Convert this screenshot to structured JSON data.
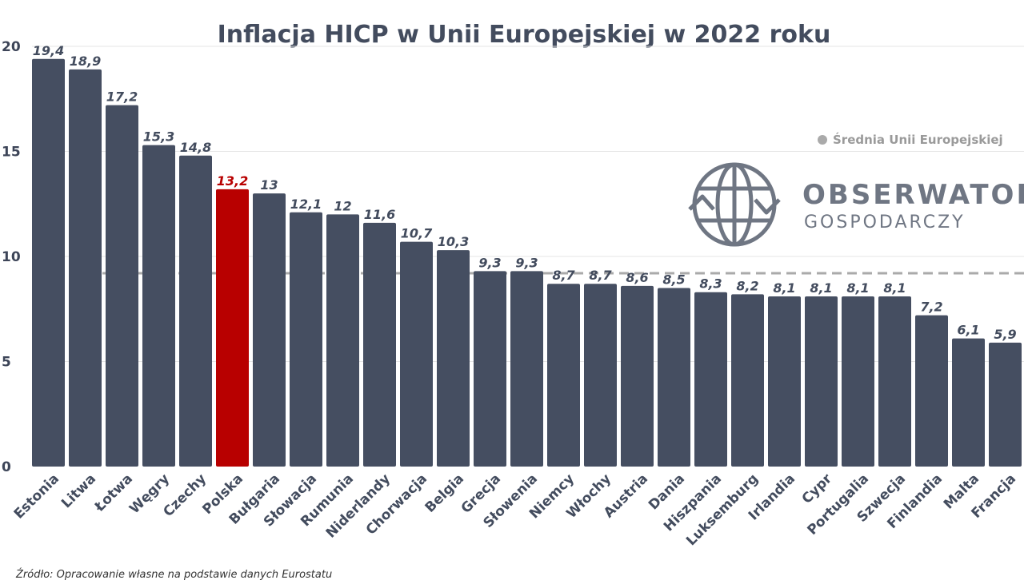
{
  "chart_data": {
    "type": "bar",
    "title": "Inflacja HICP w Unii Europejskiej w 2022 roku",
    "categories": [
      "Estonia",
      "Litwa",
      "Łotwa",
      "Węgry",
      "Czechy",
      "Polska",
      "Bułgaria",
      "Słowacja",
      "Rumunia",
      "Niderlandy",
      "Chorwacja",
      "Belgia",
      "Grecja",
      "Słowenia",
      "Niemcy",
      "Włochy",
      "Austria",
      "Dania",
      "Hiszpania",
      "Luksemburg",
      "Irlandia",
      "Cypr",
      "Portugalia",
      "Szwecja",
      "Finlandia",
      "Malta",
      "Francja"
    ],
    "values": [
      19.4,
      18.9,
      17.2,
      15.3,
      14.8,
      13.2,
      13,
      12.1,
      12,
      11.6,
      10.7,
      10.3,
      9.3,
      9.3,
      8.7,
      8.7,
      8.6,
      8.5,
      8.3,
      8.2,
      8.1,
      8.1,
      8.1,
      8.1,
      7.2,
      6.1,
      5.9
    ],
    "value_labels": [
      "19,4",
      "18,9",
      "17,2",
      "15,3",
      "14,8",
      "13,2",
      "13",
      "12,1",
      "12",
      "11,6",
      "10,7",
      "10,3",
      "9,3",
      "9,3",
      "8,7",
      "8,7",
      "8,6",
      "8,5",
      "8,3",
      "8,2",
      "8,1",
      "8,1",
      "8,1",
      "8,1",
      "7,2",
      "6,1",
      "5,9"
    ],
    "highlight_category": "Polska",
    "ylim": [
      0,
      20
    ],
    "yticks": [
      0,
      5,
      10,
      15,
      20
    ],
    "grid": true,
    "reference_line": {
      "label": "Średnia Unii Europejskiej",
      "value": 9.2,
      "style": "dashed"
    },
    "legend_position": "top-right",
    "xlabel": "",
    "ylabel": ""
  },
  "colors": {
    "bar": "#454e61",
    "highlight": "#b80000",
    "average_line": "#aaaaaa",
    "grid": "#e6e6e6"
  },
  "logo": {
    "line1": "OBSERWATOR",
    "line2": "GOSPODARCZY",
    "icon": "globe-recycle-icon"
  },
  "source": "Źródło: Opracowanie własne na podstawie danych Eurostatu"
}
